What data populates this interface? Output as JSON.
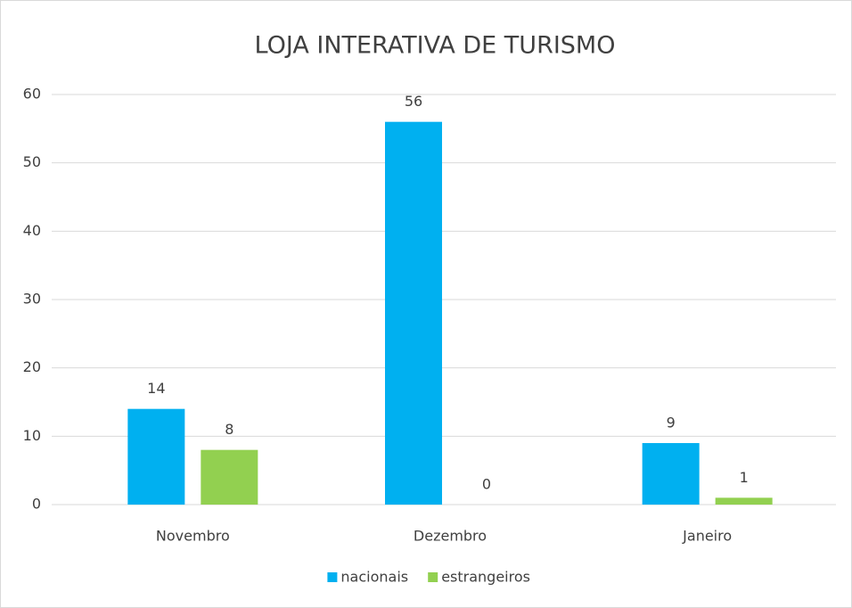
{
  "chart_data": {
    "type": "bar",
    "title": "LOJA INTERATIVA DE TURISMO",
    "categories": [
      "Novembro",
      "Dezembro",
      "Janeiro"
    ],
    "series": [
      {
        "name": "nacionais",
        "color": "#00b0f0",
        "values": [
          14,
          56,
          9
        ]
      },
      {
        "name": "estrangeiros",
        "color": "#92d050",
        "values": [
          8,
          0,
          1
        ]
      }
    ],
    "ylim": [
      0,
      60
    ],
    "yticks": [
      0,
      10,
      20,
      30,
      40,
      50,
      60
    ],
    "grid": true,
    "legend": "bottom"
  }
}
